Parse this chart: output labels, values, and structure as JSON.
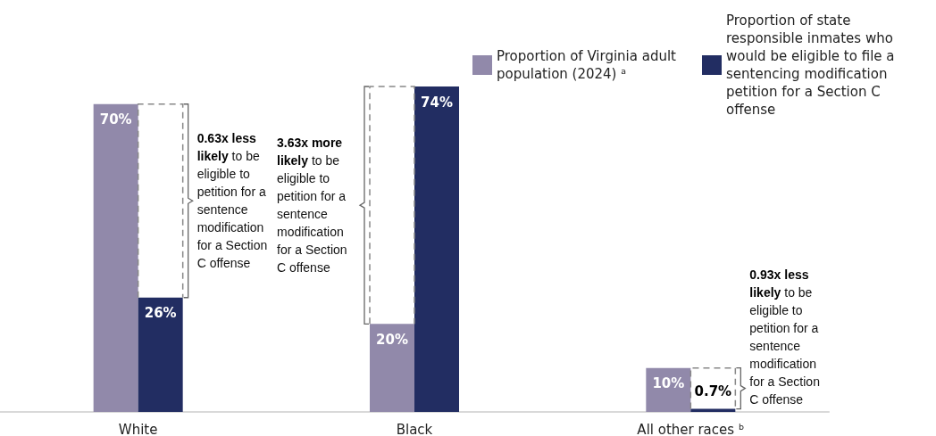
{
  "chart_data": {
    "type": "bar",
    "categories": [
      "White",
      "Black",
      "All other races ᵇ"
    ],
    "series": [
      {
        "name": "Proportion of Virginia adult population (2024) ᵃ",
        "color": "#9189aa",
        "values": [
          70,
          20,
          10
        ],
        "value_labels": [
          "70%",
          "20%",
          "10%"
        ]
      },
      {
        "name": "Proportion of state responsible inmates who would be eligible to file a sentencing modification petition for a Section C offense",
        "color": "#222d62",
        "values": [
          26,
          74,
          0.7
        ],
        "value_labels": [
          "26%",
          "74%",
          "0.7%"
        ]
      }
    ],
    "legend": "top right",
    "grid": false,
    "annotations": [
      "0.63x less likely to be eligible to petition for a sentence modification for a Section C offense",
      "3.63x more likely to be eligible to petition for a sentence modification for a Section C offense",
      "0.93x less likely to be eligible to petition for a sentence modification for a Section C offense"
    ]
  }
}
